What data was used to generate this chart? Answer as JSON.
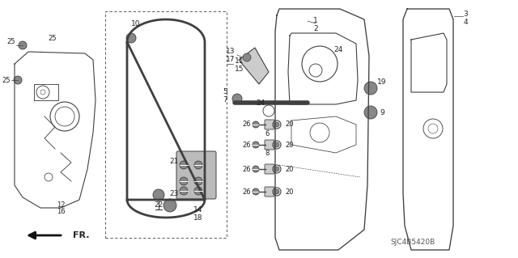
{
  "background_color": "#ffffff",
  "line_color": "#404040",
  "catalog_number": "SJC4B5420B",
  "fig_width": 6.4,
  "fig_height": 3.19,
  "dpi": 100,
  "gray_fill": "#888888",
  "light_gray": "#bbbbbb"
}
